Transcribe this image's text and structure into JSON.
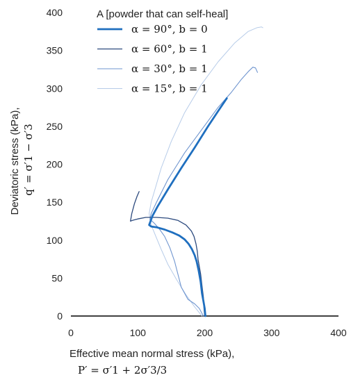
{
  "chart_data": {
    "type": "line",
    "title": "",
    "xlabel": "Effective mean normal stress (kPa),",
    "xlabel_formula": "P′ = σ′1 + 2σ′3/3",
    "ylabel": "Deviatoric stress (kPa),",
    "ylabel_formula": "q′ = σ′1 − σ′3",
    "xlim": [
      0,
      400
    ],
    "ylim": [
      0,
      400
    ],
    "xticks": [
      "0",
      "100",
      "200",
      "300",
      "400"
    ],
    "yticks": [
      "0",
      "50",
      "100",
      "150",
      "200",
      "250",
      "300",
      "350",
      "400"
    ],
    "grid": false,
    "legend_position": "top-left",
    "legend_title": "A [powder that can self-heal]",
    "series": [
      {
        "name": "α = 90°, b = 0",
        "color": "#1f6fbf",
        "width": 2.8,
        "x": [
          201,
          200,
          198,
          196,
          194,
          191,
          188,
          185,
          181,
          176,
          170,
          162,
          152,
          140,
          128,
          120,
          117,
          122,
          130,
          145,
          165,
          185,
          205,
          220,
          233
        ],
        "y": [
          0,
          10,
          20,
          30,
          45,
          60,
          72,
          80,
          88,
          95,
          101,
          106,
          110,
          114,
          117,
          118,
          120,
          132,
          145,
          167,
          195,
          222,
          250,
          270,
          287
        ]
      },
      {
        "name": "α = 60°, b = 1",
        "color": "#2c4a7e",
        "width": 1.3,
        "x": [
          200,
          199,
          198,
          196,
          194,
          192,
          190,
          189,
          187,
          184,
          180,
          172,
          160,
          145,
          128,
          112,
          100,
          92,
          89,
          91,
          95,
          99,
          102
        ],
        "y": [
          0,
          10,
          25,
          40,
          55,
          65,
          75,
          85,
          95,
          105,
          112,
          120,
          126,
          129,
          130,
          130,
          128,
          126,
          125,
          135,
          148,
          158,
          164
        ]
      },
      {
        "name": "α = 30°, b = 1",
        "color": "#6f95cf",
        "width": 1.1,
        "x": [
          198,
          192,
          185,
          175,
          165,
          160,
          155,
          148,
          140,
          132,
          125,
          120,
          118,
          120,
          128,
          145,
          170,
          195,
          220,
          240,
          255,
          265,
          272,
          276,
          279
        ],
        "y": [
          0,
          10,
          16,
          22,
          38,
          55,
          72,
          90,
          105,
          115,
          122,
          126,
          127,
          135,
          150,
          180,
          215,
          245,
          275,
          295,
          312,
          322,
          328,
          327,
          321
        ]
      },
      {
        "name": "α = 15°, b = 1",
        "color": "#b6cbe8",
        "width": 1,
        "x": [
          196,
          185,
          172,
          158,
          145,
          135,
          127,
          120,
          117,
          120,
          126,
          135,
          150,
          170,
          195,
          220,
          245,
          265,
          278,
          285,
          287
        ],
        "y": [
          0,
          12,
          28,
          48,
          68,
          88,
          105,
          120,
          135,
          150,
          168,
          195,
          230,
          268,
          305,
          335,
          360,
          375,
          380,
          381,
          380
        ]
      }
    ]
  }
}
